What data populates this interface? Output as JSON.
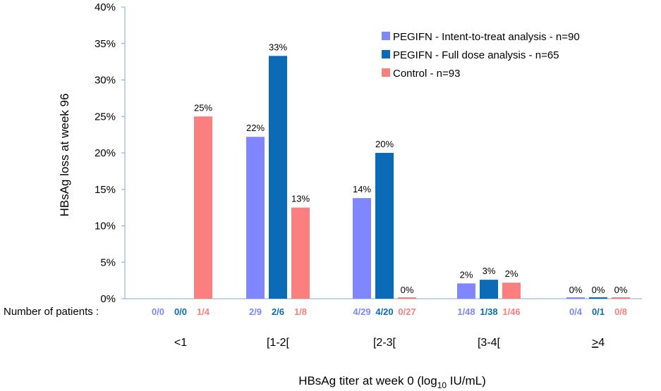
{
  "chart_data": {
    "type": "bar",
    "ylabel": "HBsAg loss at week 96",
    "xlabel_main": "HBsAg titer at week 0 (log",
    "xlabel_sub": "10",
    "xlabel_tail": " IU/mL)",
    "ylim": [
      0,
      40
    ],
    "yticks": [
      "0%",
      "5%",
      "10%",
      "15%",
      "20%",
      "25%",
      "30%",
      "35%",
      "40%"
    ],
    "categories": [
      "<1",
      "[1-2[",
      "[2-3[",
      "[3-4[",
      "≥4"
    ],
    "patients_label": "Number of patients :",
    "legend_position": "top-right",
    "series": [
      {
        "name": "PEGIFN - Intent-to-treat analysis - n=90",
        "color": "#7f86ff",
        "values": [
          null,
          22.2,
          13.8,
          2.1,
          0
        ],
        "labels": [
          "",
          "22%",
          "14%",
          "2%",
          "0%"
        ],
        "patients": [
          "0/0",
          "2/9",
          "4/29",
          "1/48",
          "0/4"
        ]
      },
      {
        "name": "PEGIFN - Full dose analysis - n=65",
        "color": "#0b6bb7",
        "values": [
          null,
          33.3,
          20,
          2.6,
          0
        ],
        "labels": [
          "",
          "33%",
          "20%",
          "3%",
          "0%"
        ],
        "patients": [
          "0/0",
          "2/6",
          "4/20",
          "1/38",
          "0/1"
        ]
      },
      {
        "name": "Control - n=93",
        "color": "#fc7f7f",
        "values": [
          25,
          12.5,
          0,
          2.2,
          0
        ],
        "labels": [
          "25%",
          "13%",
          "0%",
          "2%",
          "0%"
        ],
        "patients": [
          "1/4",
          "1/8",
          "0/27",
          "1/46",
          "0/8"
        ]
      }
    ]
  }
}
